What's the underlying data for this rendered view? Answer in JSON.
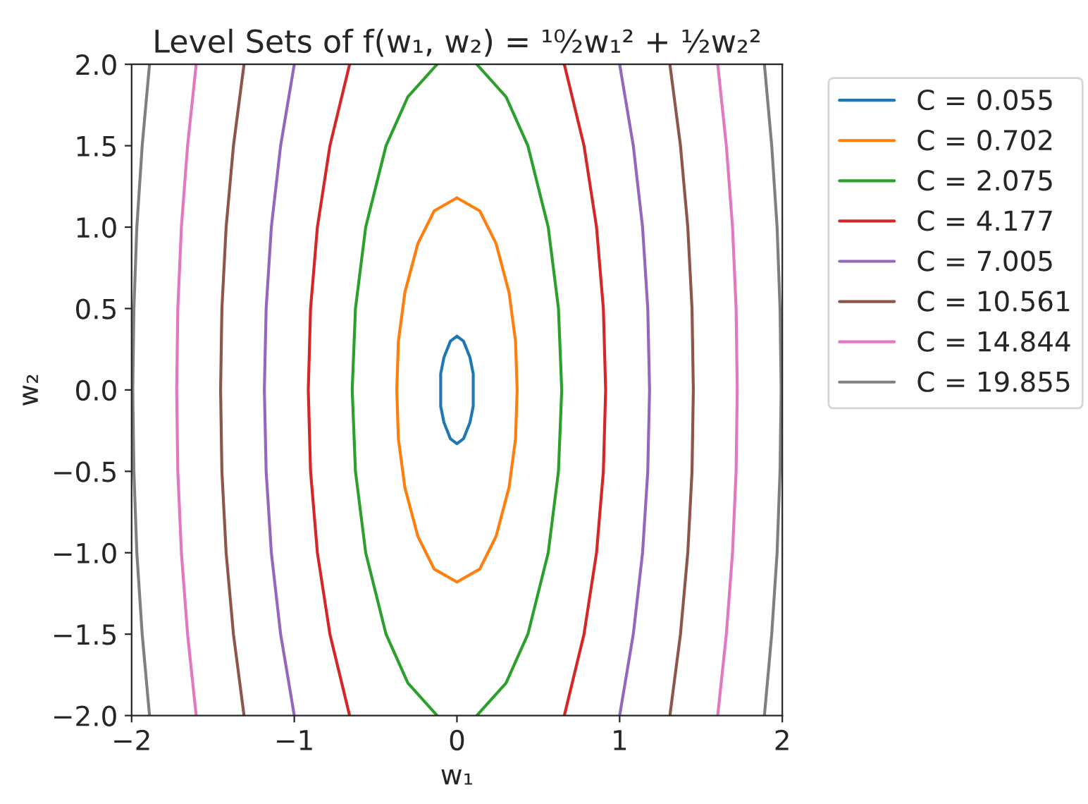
{
  "chart_data": {
    "type": "line",
    "title": "Level Sets of f(w₁, w₂) = ¹⁰⁄₂w₁² + ½w₂²",
    "xlabel": "w₁",
    "ylabel": "w₂",
    "xlim": [
      -2,
      2
    ],
    "ylim": [
      -2,
      2
    ],
    "xticks": [
      {
        "value": -2,
        "label": "−2"
      },
      {
        "value": -1,
        "label": "−1"
      },
      0,
      1,
      2
    ],
    "yticks": [
      {
        "value": -2,
        "label": "−2.0"
      },
      {
        "value": -1.5,
        "label": "−1.5"
      },
      {
        "value": -1,
        "label": "−1.0"
      },
      {
        "value": -0.5,
        "label": "−0.5"
      },
      {
        "value": 0,
        "label": "0.0"
      },
      {
        "value": 0.5,
        "label": "0.5"
      },
      {
        "value": 1,
        "label": "1.0"
      },
      {
        "value": 1.5,
        "label": "1.5"
      },
      {
        "value": 2,
        "label": "2.0"
      }
    ],
    "grid": false,
    "legend": "top right",
    "line_style": "solid",
    "series": [
      {
        "name": "C = 0.055",
        "color": "#1f77b4",
        "x": [
          0,
          0.04,
          0.08,
          0.1,
          0.1,
          0.1,
          0.08,
          0.04,
          0,
          null,
          0,
          -0.04,
          -0.08,
          -0.1,
          -0.1,
          -0.1,
          -0.08,
          -0.04,
          0
        ],
        "values": [
          0.33,
          0.3,
          0.2,
          0.1,
          0,
          -0.1,
          -0.2,
          -0.3,
          -0.33,
          null,
          0.33,
          0.3,
          0.2,
          0.1,
          0,
          -0.1,
          -0.2,
          -0.3,
          -0.33
        ]
      },
      {
        "name": "C = 0.702",
        "color": "#ff7f0e",
        "x": [
          0,
          0.14,
          0.24,
          0.32,
          0.36,
          0.37,
          0.36,
          0.32,
          0.24,
          0.14,
          0,
          null,
          0,
          -0.14,
          -0.24,
          -0.32,
          -0.36,
          -0.37,
          -0.36,
          -0.32,
          -0.24,
          -0.14,
          0
        ],
        "values": [
          1.18,
          1.1,
          0.9,
          0.6,
          0.3,
          0,
          -0.3,
          -0.6,
          -0.9,
          -1.1,
          -1.18,
          null,
          1.18,
          1.1,
          0.9,
          0.6,
          0.3,
          0,
          -0.3,
          -0.6,
          -0.9,
          -1.1,
          -1.18
        ]
      },
      {
        "name": "C = 2.075",
        "color": "#2ca02c",
        "x": [
          0.122,
          0.302,
          0.436,
          0.561,
          0.624,
          0.644,
          0.624,
          0.561,
          0.436,
          0.302,
          0.122,
          null,
          -0.122,
          -0.302,
          -0.436,
          -0.561,
          -0.624,
          -0.644,
          -0.624,
          -0.561,
          -0.436,
          -0.302,
          -0.122
        ],
        "values": [
          2,
          1.8,
          1.5,
          1,
          0.5,
          0,
          -0.5,
          -1,
          -1.5,
          -1.8,
          -2,
          null,
          2,
          1.8,
          1.5,
          1,
          0.5,
          0,
          -0.5,
          -1,
          -1.5,
          -1.8,
          -2
        ]
      },
      {
        "name": "C = 4.177",
        "color": "#d62728",
        "x": [
          0.66,
          0.781,
          0.858,
          0.9,
          0.914,
          0.9,
          0.858,
          0.781,
          0.66,
          null,
          -0.66,
          -0.781,
          -0.858,
          -0.9,
          -0.914,
          -0.9,
          -0.858,
          -0.781,
          -0.66
        ],
        "values": [
          2,
          1.5,
          1,
          0.5,
          0,
          -0.5,
          -1,
          -1.5,
          -2,
          null,
          2,
          1.5,
          1,
          0.5,
          0,
          -0.5,
          -1,
          -1.5,
          -2
        ]
      },
      {
        "name": "C = 7.005",
        "color": "#9467bd",
        "x": [
          1.0,
          1.084,
          1.141,
          1.173,
          1.184,
          1.173,
          1.141,
          1.084,
          1.0,
          null,
          -1.0,
          -1.084,
          -1.141,
          -1.173,
          -1.184,
          -1.173,
          -1.141,
          -1.084,
          -1.0
        ],
        "values": [
          2,
          1.5,
          1,
          0.5,
          0,
          -0.5,
          -1,
          -1.5,
          -2,
          null,
          2,
          1.5,
          1,
          0.5,
          0,
          -0.5,
          -1,
          -1.5,
          -2
        ]
      },
      {
        "name": "C = 10.561",
        "color": "#8c564b",
        "x": [
          1.309,
          1.374,
          1.419,
          1.445,
          1.453,
          1.445,
          1.419,
          1.374,
          1.309,
          null,
          -1.309,
          -1.374,
          -1.419,
          -1.445,
          -1.453,
          -1.445,
          -1.419,
          -1.374,
          -1.309
        ],
        "values": [
          2,
          1.5,
          1,
          0.5,
          0,
          -0.5,
          -1,
          -1.5,
          -2,
          null,
          2,
          1.5,
          1,
          0.5,
          0,
          -0.5,
          -1,
          -1.5,
          -2
        ]
      },
      {
        "name": "C = 14.844",
        "color": "#e377c2",
        "x": [
          1.603,
          1.656,
          1.694,
          1.716,
          1.723,
          1.716,
          1.694,
          1.656,
          1.603,
          null,
          -1.603,
          -1.656,
          -1.694,
          -1.716,
          -1.723,
          -1.716,
          -1.694,
          -1.656,
          -1.603
        ],
        "values": [
          2,
          1.5,
          1,
          0.5,
          0,
          -0.5,
          -1,
          -1.5,
          -2,
          null,
          2,
          1.5,
          1,
          0.5,
          0,
          -0.5,
          -1,
          -1.5,
          -2
        ]
      },
      {
        "name": "C = 19.855",
        "color": "#7f7f7f",
        "x": [
          1.89,
          1.935,
          1.968,
          1.986,
          1.993,
          1.986,
          1.968,
          1.935,
          1.89,
          null,
          -1.89,
          -1.935,
          -1.968,
          -1.986,
          -1.993,
          -1.986,
          -1.968,
          -1.935,
          -1.89
        ],
        "values": [
          2,
          1.5,
          1,
          0.5,
          0,
          -0.5,
          -1,
          -1.5,
          -2,
          null,
          2,
          1.5,
          1,
          0.5,
          0,
          -0.5,
          -1,
          -1.5,
          -2
        ]
      }
    ]
  }
}
